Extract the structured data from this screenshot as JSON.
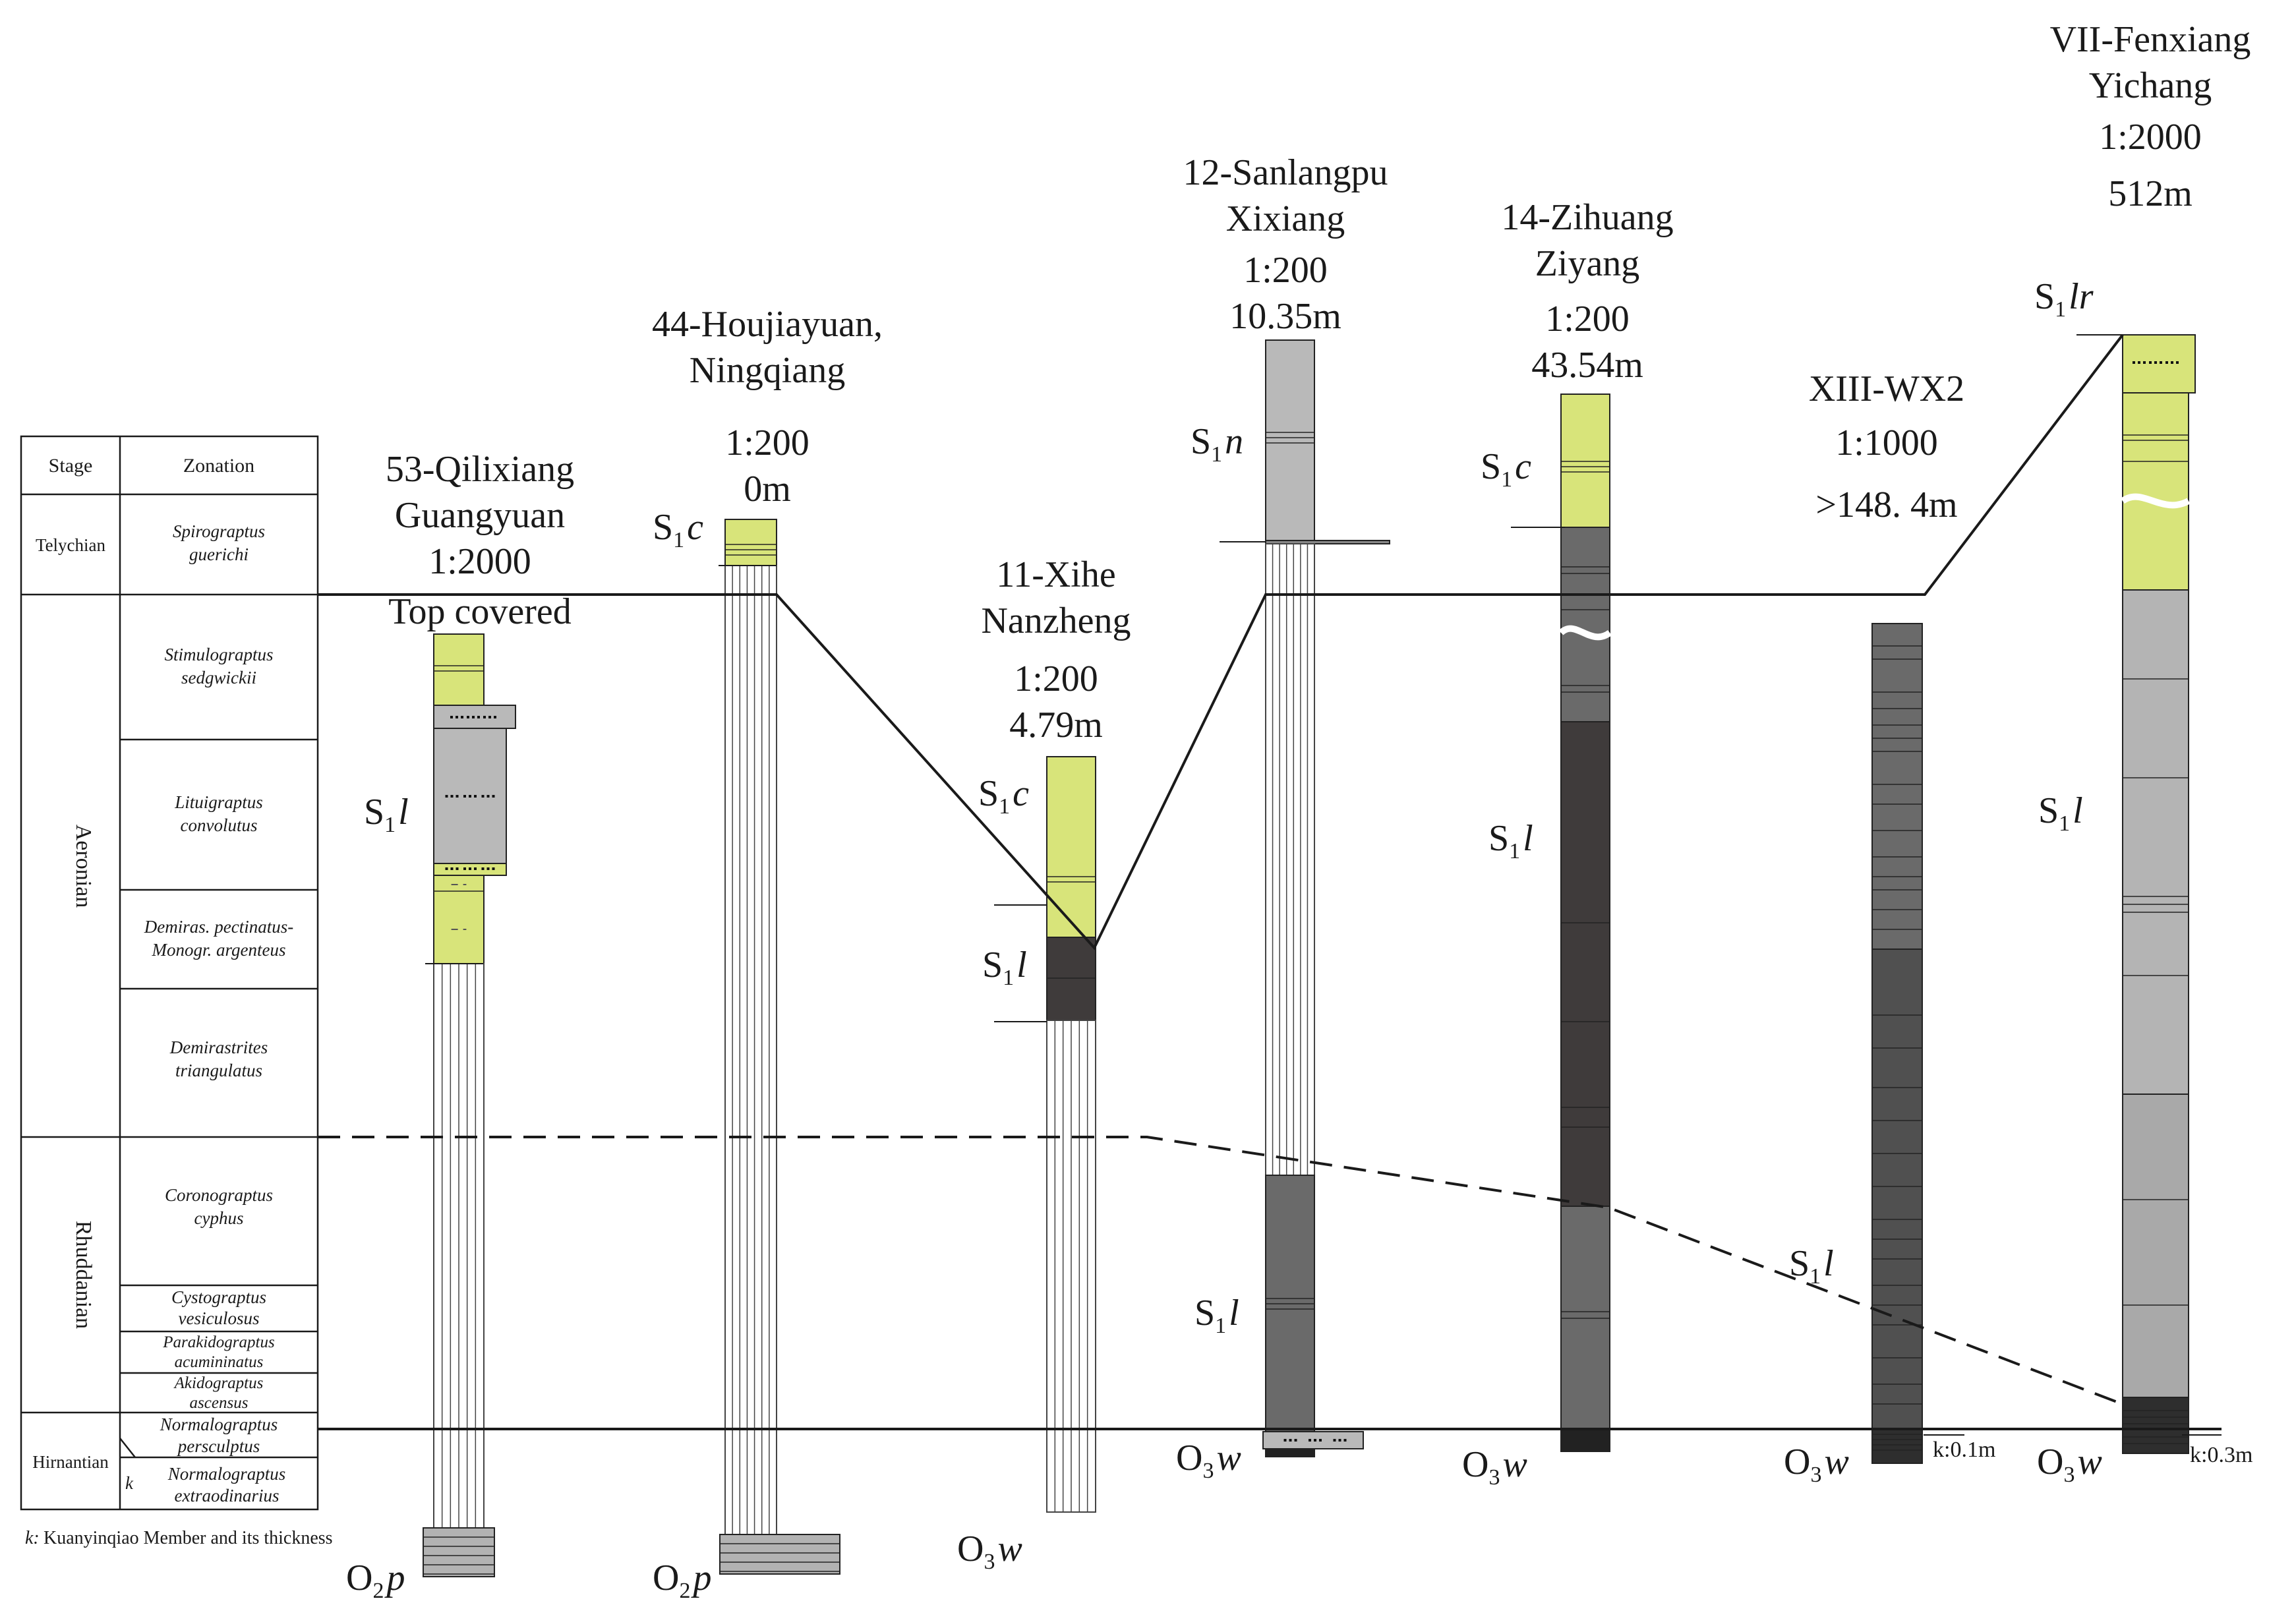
{
  "table": {
    "header_stage": "Stage",
    "header_zonation": "Zonation",
    "stages": [
      {
        "label": "Telychian"
      },
      {
        "label": "Aeronian"
      },
      {
        "label": "Rhuddanian"
      },
      {
        "label": "Hirnantian"
      }
    ],
    "zones": [
      {
        "l1": "Spirograptus",
        "l2": "guerichi"
      },
      {
        "l1": "Stimulograptus",
        "l2": "sedgwickii"
      },
      {
        "l1": "Lituigraptus",
        "l2": "convolutus"
      },
      {
        "l1": "Demiras. pectinatus-",
        "l2": "Monogr. argenteus"
      },
      {
        "l1": "Demirastrites",
        "l2": "triangulatus"
      },
      {
        "l1": "Coronograptus",
        "l2": "cyphus"
      },
      {
        "l1": "Cystograptus",
        "l2": "vesiculosus"
      },
      {
        "l1": "Parakidograptus",
        "l2": "acumininatus"
      },
      {
        "l1": "Akidograptus",
        "l2": "ascensus"
      },
      {
        "l1": "Normalograptus",
        "l2": "persculptus"
      },
      {
        "l1": "Normalograptus",
        "l2": "extraodinarius"
      }
    ],
    "k_mark": "k",
    "footnote_k": "k:",
    "footnote_text": "Kuanyinqiao Member and its thickness"
  },
  "sections": [
    {
      "lines": [
        "53-Qilixiang",
        "Guangyuan",
        "1:2000",
        "Top covered"
      ]
    },
    {
      "lines": [
        "44-Houjiayuan,",
        "Ningqiang",
        "1:200",
        "0m"
      ]
    },
    {
      "lines": [
        "11-Xihe",
        "Nanzheng",
        "1:200",
        "4.79m"
      ]
    },
    {
      "lines": [
        "12-Sanlangpu",
        "Xixiang",
        "1:200",
        "10.35m"
      ]
    },
    {
      "lines": [
        "14-Zihuang",
        "Ziyang",
        "1:200",
        "43.54m"
      ]
    },
    {
      "lines": [
        "XIII-WX2",
        "1:1000",
        ">148. 4m"
      ]
    },
    {
      "lines": [
        "VII-Fenxiang",
        "Yichang",
        "1:2000",
        "512m"
      ]
    }
  ],
  "formations": {
    "S1c": {
      "base": "S",
      "sub": "1",
      "italic": "c"
    },
    "S1l": {
      "base": "S",
      "sub": "1",
      "italic": "l"
    },
    "S1n": {
      "base": "S",
      "sub": "1",
      "italic": "n"
    },
    "S1lr": {
      "base": "S",
      "sub": "1",
      "italic": "lr"
    },
    "O3w": {
      "base": "O",
      "sub": "3",
      "italic": "w"
    },
    "O2p": {
      "base": "O",
      "sub": "2",
      "italic": "p"
    }
  },
  "k_labels": [
    "k:0.1m",
    "k:0.3m"
  ],
  "colors": {
    "yellow": "#d8e47a",
    "light_gray": "#b9b9b9",
    "mid_gray": "#a9a9a9",
    "dark_gray": "#6a6a6a",
    "very_dark": "#3f3b3b",
    "line": "#1a1a1a"
  }
}
